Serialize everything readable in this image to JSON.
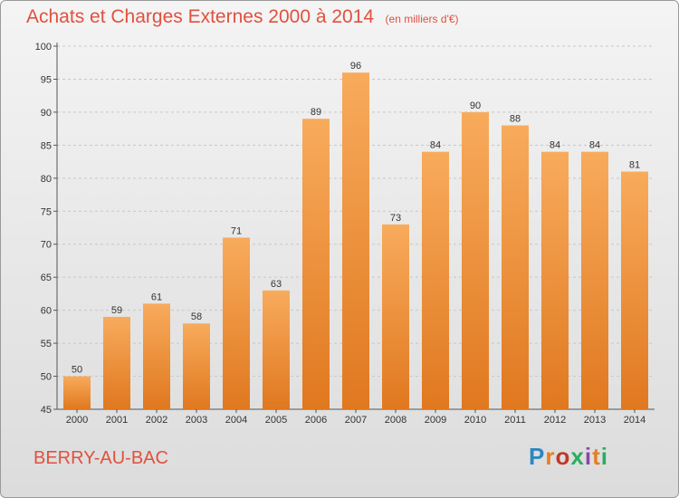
{
  "header": {
    "title": "Achats et Charges Externes 2000 à 2014",
    "unit": "(en milliers d'€)"
  },
  "footer": {
    "commune": "BERRY-AU-BAC",
    "brand": "Proxiti"
  },
  "colors": {
    "bar_light": "#f7a655",
    "bar_dark": "#e07a22",
    "title": "#e0513f"
  },
  "chart_data": {
    "type": "bar",
    "title": "Achats et Charges Externes 2000 à 2014",
    "subtitle": "(en milliers d'€)",
    "categories": [
      "2000",
      "2001",
      "2002",
      "2003",
      "2004",
      "2005",
      "2006",
      "2007",
      "2008",
      "2009",
      "2010",
      "2011",
      "2012",
      "2013",
      "2014"
    ],
    "values": [
      50,
      59,
      61,
      58,
      71,
      63,
      89,
      96,
      73,
      84,
      90,
      88,
      84,
      84,
      81
    ],
    "ylim": [
      45,
      100
    ],
    "yticks": [
      45,
      50,
      55,
      60,
      65,
      70,
      75,
      80,
      85,
      90,
      95,
      100
    ],
    "grid": true,
    "xlabel": "",
    "ylabel": ""
  }
}
